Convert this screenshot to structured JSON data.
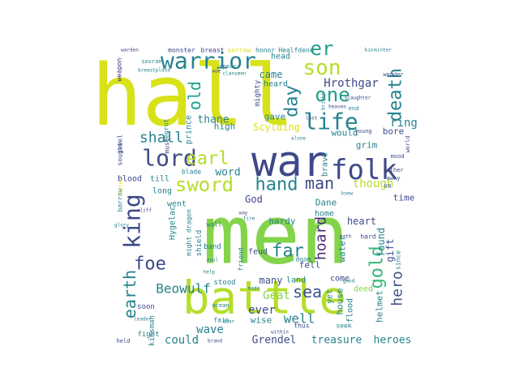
{
  "colors": {
    "yellow": "#d8e219",
    "green": "#84d44b",
    "lime": "#b5de2b",
    "teal": "#26828e",
    "teal2": "#1f9e89",
    "sea": "#35b779",
    "blue": "#31688e",
    "indigo": "#3e4989",
    "purple": "#482878",
    "dark": "#440154",
    "steel": "#3b528b"
  },
  "words": [
    {
      "text": "hall",
      "color": "yellow"
    },
    {
      "text": "men",
      "color": "green"
    },
    {
      "text": "war",
      "color": "indigo"
    },
    {
      "text": "battle",
      "color": "lime"
    },
    {
      "text": "warrior",
      "color": "teal"
    },
    {
      "text": "king",
      "color": "indigo"
    },
    {
      "text": "lord",
      "color": "indigo"
    },
    {
      "text": "folk",
      "color": "indigo"
    },
    {
      "text": "sword",
      "color": "lime"
    },
    {
      "text": "life",
      "color": "teal"
    },
    {
      "text": "son",
      "color": "lime"
    },
    {
      "text": "er",
      "color": "teal2"
    },
    {
      "text": "one",
      "color": "teal2"
    },
    {
      "text": "death",
      "color": "teal"
    },
    {
      "text": "day",
      "color": "teal"
    },
    {
      "text": "old",
      "color": "teal2"
    },
    {
      "text": "shall",
      "color": "teal"
    },
    {
      "text": "earl",
      "color": "lime"
    },
    {
      "text": "hand",
      "color": "teal"
    },
    {
      "text": "man",
      "color": "indigo"
    },
    {
      "text": "gold",
      "color": "sea"
    },
    {
      "text": "earth",
      "color": "teal"
    },
    {
      "text": "foe",
      "color": "indigo"
    },
    {
      "text": "far",
      "color": "teal"
    },
    {
      "text": "sea",
      "color": "steel"
    },
    {
      "text": "hero",
      "color": "steel"
    },
    {
      "text": "hoard",
      "color": "purple"
    },
    {
      "text": "Beowulf",
      "color": "teal"
    },
    {
      "text": "Hrothgar",
      "color": "indigo"
    },
    {
      "text": "ring",
      "color": "teal"
    },
    {
      "text": "thane",
      "color": "teal"
    },
    {
      "text": "came",
      "color": "teal"
    },
    {
      "text": "word",
      "color": "teal"
    },
    {
      "text": "though",
      "color": "lime"
    },
    {
      "text": "well",
      "color": "teal"
    },
    {
      "text": "ever",
      "color": "indigo"
    },
    {
      "text": "Geat",
      "color": "green"
    },
    {
      "text": "many",
      "color": "steel"
    },
    {
      "text": "wave",
      "color": "teal"
    },
    {
      "text": "could",
      "color": "teal"
    },
    {
      "text": "Grendel",
      "color": "indigo"
    },
    {
      "text": "treasure",
      "color": "teal"
    },
    {
      "text": "heroes",
      "color": "teal"
    },
    {
      "text": "high",
      "color": "teal"
    },
    {
      "text": "gave",
      "color": "teal"
    },
    {
      "text": "Scylding",
      "color": "yellow"
    },
    {
      "text": "would",
      "color": "teal"
    },
    {
      "text": "bore",
      "color": "indigo"
    },
    {
      "text": "grim",
      "color": "teal"
    },
    {
      "text": "God",
      "color": "indigo"
    },
    {
      "text": "Dane",
      "color": "teal"
    },
    {
      "text": "hardy",
      "color": "teal"
    },
    {
      "text": "heart",
      "color": "indigo"
    },
    {
      "text": "home",
      "color": "teal"
    },
    {
      "text": "time",
      "color": "indigo"
    },
    {
      "text": "found",
      "color": "teal"
    },
    {
      "text": "helmet",
      "color": "teal"
    },
    {
      "text": "gift",
      "color": "steel"
    },
    {
      "text": "brave",
      "color": "teal"
    },
    {
      "text": "feud",
      "color": "indigo"
    },
    {
      "text": "fell",
      "color": "indigo"
    },
    {
      "text": "land",
      "color": "teal"
    },
    {
      "text": "come",
      "color": "indigo"
    },
    {
      "text": "yet",
      "color": "teal"
    },
    {
      "text": "house",
      "color": "teal"
    },
    {
      "text": "deed",
      "color": "green"
    },
    {
      "text": "flood",
      "color": "teal"
    },
    {
      "text": "water",
      "color": "teal"
    },
    {
      "text": "wise",
      "color": "teal"
    },
    {
      "text": "blood",
      "color": "indigo"
    },
    {
      "text": "till",
      "color": "teal"
    },
    {
      "text": "long",
      "color": "teal"
    },
    {
      "text": "went",
      "color": "teal"
    },
    {
      "text": "Hygelac",
      "color": "teal"
    },
    {
      "text": "prince",
      "color": "teal"
    },
    {
      "text": "mighty",
      "color": "indigo"
    },
    {
      "text": "head",
      "color": "teal"
    },
    {
      "text": "heard",
      "color": "teal"
    },
    {
      "text": "stood",
      "color": "teal"
    },
    {
      "text": "band",
      "color": "teal"
    },
    {
      "text": "shield",
      "color": "teal"
    },
    {
      "text": "soon",
      "color": "indigo"
    },
    {
      "text": "kinsman",
      "color": "teal"
    },
    {
      "text": "fight",
      "color": "teal"
    },
    {
      "text": "fain",
      "color": "teal"
    },
    {
      "text": "doom",
      "color": "teal"
    },
    {
      "text": "friend",
      "color": "teal"
    },
    {
      "text": "might dragon",
      "color": "teal"
    },
    {
      "text": "wall",
      "color": "teal"
    },
    {
      "text": "seek",
      "color": "teal"
    },
    {
      "text": "thus",
      "color": "indigo"
    },
    {
      "text": "hard",
      "color": "indigo"
    },
    {
      "text": "must",
      "color": "indigo"
    },
    {
      "text": "blade",
      "color": "teal"
    },
    {
      "text": "Heorot",
      "color": "teal"
    },
    {
      "text": "barrow",
      "color": "teal"
    },
    {
      "text": "sought",
      "color": "indigo"
    },
    {
      "text": "jewel",
      "color": "indigo"
    },
    {
      "text": "weapon",
      "color": "purple"
    },
    {
      "text": "monster",
      "color": "indigo"
    },
    {
      "text": "breast",
      "color": "indigo"
    },
    {
      "text": "sorrow",
      "color": "yellow"
    },
    {
      "text": "honor",
      "color": "teal"
    },
    {
      "text": "Healfdene",
      "color": "teal"
    },
    {
      "text": "sovran",
      "color": "teal"
    },
    {
      "text": "spear",
      "color": "teal"
    },
    {
      "text": "wonder",
      "color": "indigo"
    },
    {
      "text": "end",
      "color": "teal"
    },
    {
      "text": "last",
      "color": "indigo"
    },
    {
      "text": "alone",
      "color": "teal"
    },
    {
      "text": "young",
      "color": "indigo"
    },
    {
      "text": "mood",
      "color": "indigo"
    },
    {
      "text": "world",
      "color": "indigo"
    },
    {
      "text": "father",
      "color": "indigo"
    },
    {
      "text": "away",
      "color": "indigo"
    },
    {
      "text": "us",
      "color": "indigo"
    },
    {
      "text": "since",
      "color": "teal"
    },
    {
      "text": "ocean",
      "color": "teal"
    },
    {
      "text": "leader",
      "color": "teal"
    },
    {
      "text": "held",
      "color": "indigo"
    },
    {
      "text": "brand",
      "color": "indigo"
    },
    {
      "text": "dear",
      "color": "teal"
    },
    {
      "text": "warden",
      "color": "indigo"
    },
    {
      "text": "kin",
      "color": "teal"
    },
    {
      "text": "minter",
      "color": "teal"
    },
    {
      "text": "clansmen",
      "color": "teal"
    },
    {
      "text": "breastplate",
      "color": "teal"
    },
    {
      "text": "woe",
      "color": "indigo"
    },
    {
      "text": "bright",
      "color": "teal"
    },
    {
      "text": "heaven",
      "color": "indigo"
    },
    {
      "text": "slaughter",
      "color": "indigo"
    },
    {
      "text": "master",
      "color": "yellow"
    },
    {
      "text": "glory",
      "color": "teal"
    },
    {
      "text": "cliff",
      "color": "indigo"
    },
    {
      "text": "made",
      "color": "teal"
    },
    {
      "text": "within",
      "color": "indigo"
    },
    {
      "text": "path",
      "color": "indigo"
    },
    {
      "text": "knew",
      "color": "teal"
    },
    {
      "text": "good",
      "color": "teal"
    },
    {
      "text": "way",
      "color": "indigo"
    },
    {
      "text": "fire",
      "color": "teal"
    },
    {
      "text": "soul",
      "color": "teal"
    },
    {
      "text": "help",
      "color": "teal"
    }
  ]
}
